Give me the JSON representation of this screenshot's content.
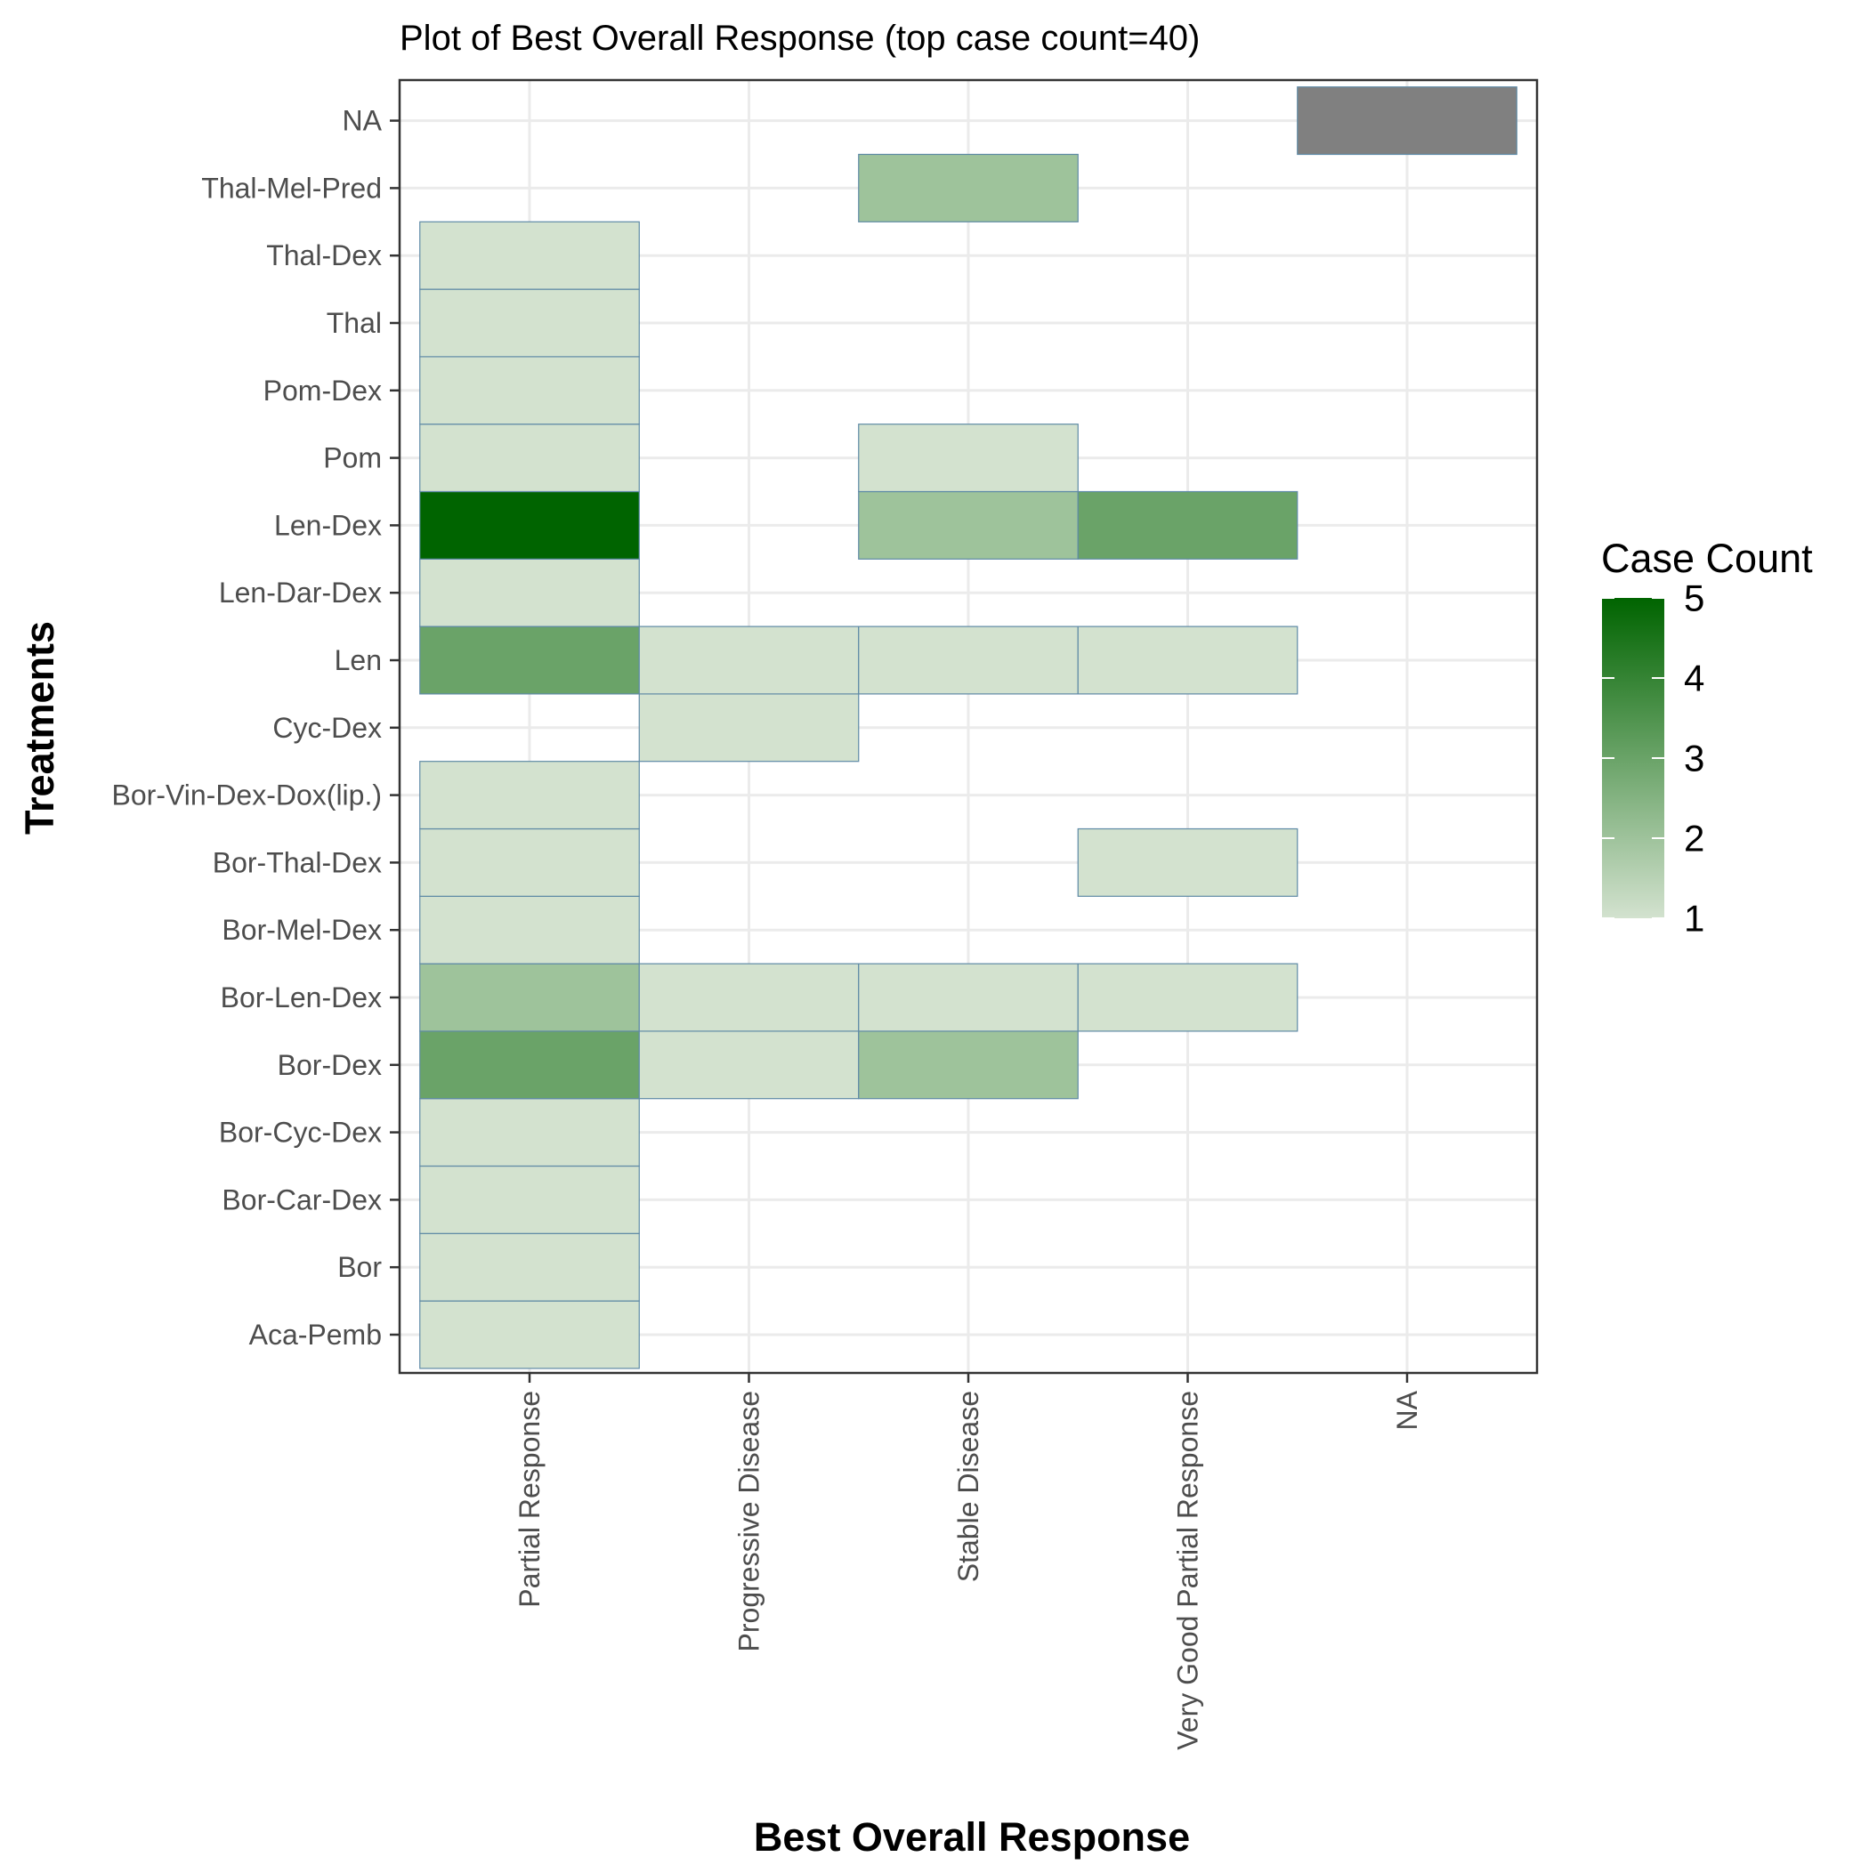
{
  "chart_data": {
    "type": "heatmap",
    "title": "Plot of Best Overall Response (top case count=40)",
    "xlabel": "Best Overall Response",
    "ylabel": "Treatments",
    "x_categories": [
      "Partial Response",
      "Progressive Disease",
      "Stable Disease",
      "Very Good Partial Response",
      "NA"
    ],
    "y_categories": [
      "Aca-Pemb",
      "Bor",
      "Bor-Car-Dex",
      "Bor-Cyc-Dex",
      "Bor-Dex",
      "Bor-Len-Dex",
      "Bor-Mel-Dex",
      "Bor-Thal-Dex",
      "Bor-Vin-Dex-Dox(lip.)",
      "Cyc-Dex",
      "Len",
      "Len-Dar-Dex",
      "Len-Dex",
      "Pom",
      "Pom-Dex",
      "Thal",
      "Thal-Dex",
      "Thal-Mel-Pred",
      "NA"
    ],
    "cells": [
      {
        "x": "Partial Response",
        "y": "Aca-Pemb",
        "value": 1
      },
      {
        "x": "Partial Response",
        "y": "Bor",
        "value": 1
      },
      {
        "x": "Partial Response",
        "y": "Bor-Car-Dex",
        "value": 1
      },
      {
        "x": "Partial Response",
        "y": "Bor-Cyc-Dex",
        "value": 1
      },
      {
        "x": "Partial Response",
        "y": "Bor-Dex",
        "value": 3
      },
      {
        "x": "Progressive Disease",
        "y": "Bor-Dex",
        "value": 1
      },
      {
        "x": "Stable Disease",
        "y": "Bor-Dex",
        "value": 2
      },
      {
        "x": "Partial Response",
        "y": "Bor-Len-Dex",
        "value": 2
      },
      {
        "x": "Progressive Disease",
        "y": "Bor-Len-Dex",
        "value": 1
      },
      {
        "x": "Stable Disease",
        "y": "Bor-Len-Dex",
        "value": 1
      },
      {
        "x": "Very Good Partial Response",
        "y": "Bor-Len-Dex",
        "value": 1
      },
      {
        "x": "Partial Response",
        "y": "Bor-Mel-Dex",
        "value": 1
      },
      {
        "x": "Partial Response",
        "y": "Bor-Thal-Dex",
        "value": 1
      },
      {
        "x": "Very Good Partial Response",
        "y": "Bor-Thal-Dex",
        "value": 1
      },
      {
        "x": "Partial Response",
        "y": "Bor-Vin-Dex-Dox(lip.)",
        "value": 1
      },
      {
        "x": "Progressive Disease",
        "y": "Cyc-Dex",
        "value": 1
      },
      {
        "x": "Partial Response",
        "y": "Len",
        "value": 3
      },
      {
        "x": "Progressive Disease",
        "y": "Len",
        "value": 1
      },
      {
        "x": "Stable Disease",
        "y": "Len",
        "value": 1
      },
      {
        "x": "Very Good Partial Response",
        "y": "Len",
        "value": 1
      },
      {
        "x": "Partial Response",
        "y": "Len-Dar-Dex",
        "value": 1
      },
      {
        "x": "Partial Response",
        "y": "Len-Dex",
        "value": 5
      },
      {
        "x": "Stable Disease",
        "y": "Len-Dex",
        "value": 2
      },
      {
        "x": "Very Good Partial Response",
        "y": "Len-Dex",
        "value": 3
      },
      {
        "x": "Partial Response",
        "y": "Pom",
        "value": 1
      },
      {
        "x": "Stable Disease",
        "y": "Pom",
        "value": 1
      },
      {
        "x": "Partial Response",
        "y": "Pom-Dex",
        "value": 1
      },
      {
        "x": "Partial Response",
        "y": "Thal",
        "value": 1
      },
      {
        "x": "Partial Response",
        "y": "Thal-Dex",
        "value": 1
      },
      {
        "x": "Stable Disease",
        "y": "Thal-Mel-Pred",
        "value": 2
      },
      {
        "x": "NA",
        "y": "NA",
        "value": null
      }
    ],
    "legend": {
      "title": "Case Count",
      "min": 1,
      "max": 5,
      "breaks": [
        1,
        2,
        3,
        4,
        5
      ],
      "low_color": "#d3e2cf",
      "high_color": "#006400",
      "na_color": "#808080",
      "placement": "right"
    },
    "grid": true,
    "cell_border_color": "#5f8aa6"
  }
}
